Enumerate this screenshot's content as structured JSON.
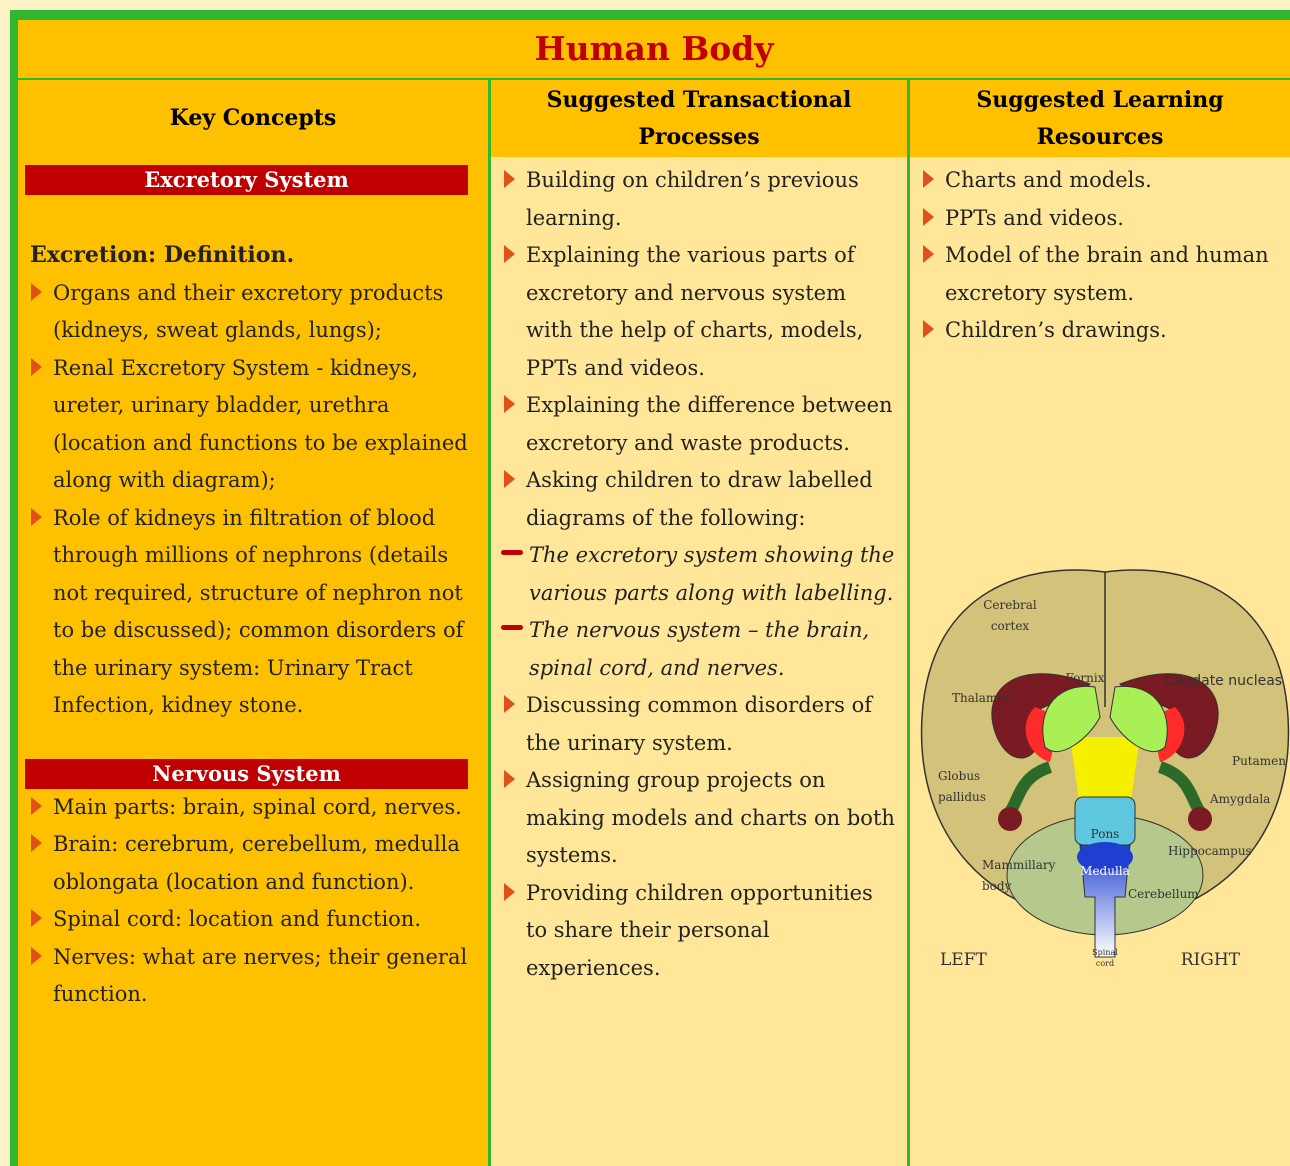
{
  "title": "Human Body",
  "headers": [
    "Key Concepts",
    "Suggested Transactional Processes",
    "Suggested Learning Resources"
  ],
  "columns": [
    {
      "sections": [
        {
          "heading": "Excretory System",
          "subheading": "Excretion: Definition.",
          "items": [
            "Organs and their excretory products (kidneys, sweat glands, lungs);",
            "Renal Excretory System - kidneys, ureter, urinary bladder, urethra (location and functions to be explained along with diagram);",
            "Role of kidneys in filtration of blood through millions of nephrons (details not required, structure of nephron not to be discussed); common disorders of the urinary system: Urinary Tract Infection, kidney stone."
          ]
        },
        {
          "heading": "Nervous System",
          "items": [
            "Main parts: brain, spinal cord, nerves.",
            "Brain: cerebrum, cerebellum, medulla oblongata (location and function).",
            "Spinal cord: location and function.",
            "Nerves: what are nerves; their general function."
          ]
        }
      ]
    },
    {
      "items": [
        {
          "text": "Building on children’s previous learning."
        },
        {
          "text": "Explaining the various parts of excretory and nervous system with the help of charts, models, PPTs and videos."
        },
        {
          "text": "Explaining the difference between excretory and waste products."
        },
        {
          "text": "Asking children to draw labelled diagrams of the following:",
          "subitems": [
            "The excretory system showing the various parts along with labelling.",
            "The nervous system – the brain, spinal cord, and nerves."
          ]
        },
        {
          "text": "Discussing common disorders of the urinary system."
        },
        {
          "text": "Assigning group projects on making models and charts on both systems."
        },
        {
          "text": "Providing children opportunities to share their personal experiences."
        }
      ]
    },
    {
      "items": [
        {
          "text": "Charts and models."
        },
        {
          "text": "PPTs and videos."
        },
        {
          "text": "Model of the brain and human excretory system."
        },
        {
          "text": "Children’s drawings."
        }
      ]
    }
  ],
  "diagram": {
    "labels": [
      {
        "lines": [
          "Cerebral",
          "cortex"
        ]
      },
      {
        "lines": [
          "Fornix"
        ]
      },
      {
        "lines": [
          "Caudate nucleas"
        ]
      },
      {
        "lines": [
          "Thalamus"
        ]
      },
      {
        "lines": [
          "Globus",
          "pallidus"
        ]
      },
      {
        "lines": [
          "Putamen"
        ]
      },
      {
        "lines": [
          "Amygdala"
        ]
      },
      {
        "lines": [
          "Pons"
        ]
      },
      {
        "lines": [
          "Hippocampus"
        ]
      },
      {
        "lines": [
          "Mammillary",
          "body"
        ]
      },
      {
        "lines": [
          "Medulla"
        ]
      },
      {
        "lines": [
          "Cerebellum"
        ]
      },
      {
        "lines": [
          "LEFT"
        ]
      },
      {
        "lines": [
          "RIGHT"
        ]
      },
      {
        "lines": [
          "Spinal",
          "cord"
        ]
      }
    ]
  }
}
